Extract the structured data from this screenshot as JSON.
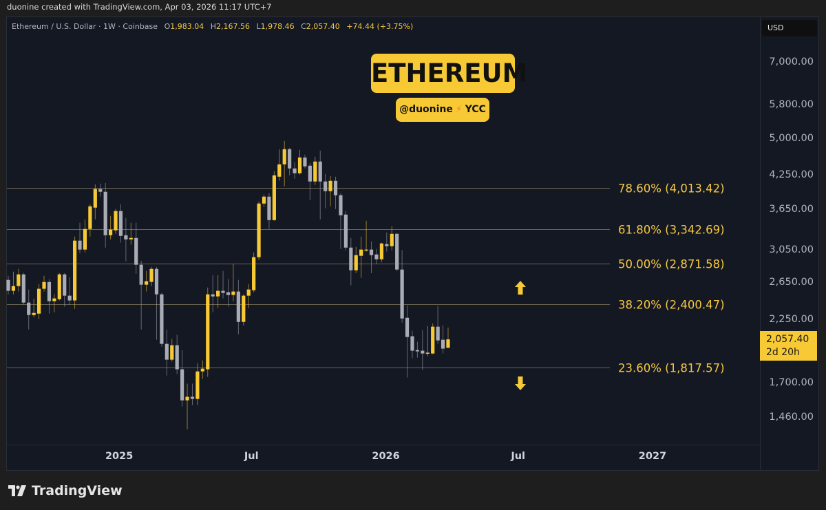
{
  "attribution": "duonine created with TradingView.com, Apr 03, 2026 11:17 UTC+7",
  "legend": {
    "symbol": "Ethereum / U.S. Dollar · 1W · Coinbase",
    "o_label": "O",
    "o": "1,983.04",
    "h_label": "H",
    "h": "2,167.56",
    "l_label": "L",
    "l": "1,978.46",
    "c_label": "C",
    "c": "2,057.40",
    "change": "+74.44 (+3.75%)"
  },
  "title_badge": "ETHEREUM",
  "sub_badge": {
    "handle": "@duonine",
    "icon": "lightning-icon",
    "bolt": "⚡",
    "tag": "YCC"
  },
  "currency": "USD",
  "last_price": {
    "price": "2,057.40",
    "countdown": "2d 20h"
  },
  "colors": {
    "up": "#f7c935",
    "down": "#a9abb5",
    "fib_line": "#6b6550",
    "fib_text": "#f5c842",
    "background": "#141823"
  },
  "arrows": [
    {
      "icon": "arrow-up-icon"
    },
    {
      "icon": "arrow-down-icon"
    }
  ],
  "chart_data": {
    "type": "candlestick",
    "symbol": "Ethereum / U.S. Dollar",
    "interval": "1W",
    "y_scale": "log",
    "ylim": [
      1330,
      8000
    ],
    "grid": false,
    "y_ticks": [
      {
        "value": 7000,
        "label": "7,000.00"
      },
      {
        "value": 5800,
        "label": "5,800.00"
      },
      {
        "value": 5000,
        "label": "5,000.00"
      },
      {
        "value": 4250,
        "label": "4,250.00"
      },
      {
        "value": 3650,
        "label": "3,650.00"
      },
      {
        "value": 3050,
        "label": "3,050.00"
      },
      {
        "value": 2650,
        "label": "2,650.00"
      },
      {
        "value": 2250,
        "label": "2,250.00"
      },
      {
        "value": 1700,
        "label": "1,700.00"
      },
      {
        "value": 1460,
        "label": "1,460.00"
      }
    ],
    "x_ticks": [
      {
        "date": "2025-01-01",
        "label": "2025"
      },
      {
        "date": "2025-07-01",
        "label": "Jul"
      },
      {
        "date": "2026-01-01",
        "label": "2026"
      },
      {
        "date": "2026-07-01",
        "label": "Jul"
      },
      {
        "date": "2027-01-01",
        "label": "2027"
      }
    ],
    "fib_levels": [
      {
        "price": 4013.42,
        "label": "78.60% (4,013.42)"
      },
      {
        "price": 3342.69,
        "label": "61.80% (3,342.69)"
      },
      {
        "price": 2871.58,
        "label": "50.00% (2,871.58)"
      },
      {
        "price": 2400.47,
        "label": "38.20% (2,400.47)"
      },
      {
        "price": 1817.57,
        "label": "23.60% (1,817.57)"
      }
    ],
    "candles_fields": [
      "date",
      "open",
      "high",
      "low",
      "close"
    ],
    "candles": [
      [
        "2024-08-05",
        2675,
        2724,
        2510,
        2549
      ],
      [
        "2024-08-12",
        2549,
        2774,
        2510,
        2603
      ],
      [
        "2024-08-19",
        2603,
        2808,
        2541,
        2741
      ],
      [
        "2024-08-26",
        2741,
        2760,
        2400,
        2420
      ],
      [
        "2024-09-02",
        2420,
        2564,
        2149,
        2291
      ],
      [
        "2024-09-09",
        2291,
        2465,
        2270,
        2312
      ],
      [
        "2024-09-16",
        2305,
        2627,
        2250,
        2572
      ],
      [
        "2024-09-23",
        2572,
        2724,
        2541,
        2650
      ],
      [
        "2024-09-30",
        2650,
        2684,
        2305,
        2435
      ],
      [
        "2024-10-07",
        2435,
        2510,
        2319,
        2465
      ],
      [
        "2024-10-14",
        2457,
        2757,
        2443,
        2741
      ],
      [
        "2024-10-21",
        2741,
        2757,
        2377,
        2495
      ],
      [
        "2024-10-28",
        2495,
        2708,
        2399,
        2443
      ],
      [
        "2024-11-04",
        2443,
        3239,
        2354,
        3181
      ],
      [
        "2024-11-11",
        3181,
        3442,
        3011,
        3058
      ],
      [
        "2024-11-18",
        3058,
        3494,
        3020,
        3349
      ],
      [
        "2024-11-25",
        3349,
        3736,
        3239,
        3701
      ],
      [
        "2024-12-02",
        3680,
        4080,
        3494,
        3995
      ],
      [
        "2024-12-09",
        3995,
        4092,
        3863,
        3946
      ],
      [
        "2024-12-16",
        3946,
        4104,
        3085,
        3258
      ],
      [
        "2024-12-23",
        3258,
        3548,
        3199,
        3339
      ],
      [
        "2024-12-30",
        3329,
        3658,
        3278,
        3625
      ],
      [
        "2025-01-06",
        3625,
        3736,
        3152,
        3248
      ],
      [
        "2025-01-13",
        3258,
        3516,
        2903,
        3199
      ],
      [
        "2025-01-20",
        3199,
        3442,
        3124,
        3219
      ],
      [
        "2025-01-27",
        3219,
        3442,
        2749,
        2860
      ],
      [
        "2025-02-03",
        2860,
        2912,
        2149,
        2619
      ],
      [
        "2025-02-10",
        2619,
        2783,
        2541,
        2659
      ],
      [
        "2025-02-17",
        2651,
        2833,
        2603,
        2808
      ],
      [
        "2025-02-24",
        2808,
        2833,
        2054,
        2510
      ],
      [
        "2025-03-03",
        2510,
        2526,
        1993,
        2017
      ],
      [
        "2025-03-10",
        2017,
        2149,
        1754,
        1881
      ],
      [
        "2025-03-17",
        1881,
        2061,
        1864,
        2005
      ],
      [
        "2025-03-24",
        2005,
        2099,
        1765,
        1803
      ],
      [
        "2025-03-31",
        1803,
        1963,
        1530,
        1572
      ],
      [
        "2025-04-07",
        1572,
        1692,
        1384,
        1597
      ],
      [
        "2025-04-14",
        1597,
        1692,
        1540,
        1582
      ],
      [
        "2025-04-21",
        1582,
        1852,
        1540,
        1786
      ],
      [
        "2025-04-28",
        1786,
        1875,
        1728,
        1808
      ],
      [
        "2025-05-05",
        1803,
        2587,
        1744,
        2510
      ],
      [
        "2025-05-12",
        2510,
        2732,
        2319,
        2487
      ],
      [
        "2025-05-19",
        2487,
        2732,
        2361,
        2549
      ],
      [
        "2025-05-26",
        2549,
        2783,
        2465,
        2526
      ],
      [
        "2025-06-02",
        2533,
        2684,
        2377,
        2503
      ],
      [
        "2025-06-09",
        2503,
        2869,
        2435,
        2541
      ],
      [
        "2025-06-16",
        2541,
        2675,
        2105,
        2222
      ],
      [
        "2025-06-23",
        2222,
        2510,
        2189,
        2495
      ],
      [
        "2025-06-30",
        2495,
        2627,
        2361,
        2564
      ],
      [
        "2025-07-07",
        2556,
        3021,
        2533,
        2957
      ],
      [
        "2025-07-14",
        2957,
        3781,
        2921,
        3747
      ],
      [
        "2025-07-21",
        3747,
        3899,
        3691,
        3863
      ],
      [
        "2025-07-28",
        3863,
        3922,
        3349,
        3483
      ],
      [
        "2025-08-04",
        3483,
        4322,
        3473,
        4244
      ],
      [
        "2025-08-11",
        4218,
        4763,
        4142,
        4455
      ],
      [
        "2025-08-18",
        4455,
        4940,
        4043,
        4763
      ],
      [
        "2025-08-25",
        4763,
        4790,
        4244,
        4375
      ],
      [
        "2025-09-01",
        4375,
        4495,
        4180,
        4283
      ],
      [
        "2025-09-08",
        4283,
        4748,
        4257,
        4592
      ],
      [
        "2025-09-15",
        4592,
        4649,
        4375,
        4415
      ],
      [
        "2025-09-22",
        4428,
        4480,
        3804,
        4130
      ],
      [
        "2025-09-29",
        4130,
        4606,
        4068,
        4510
      ],
      [
        "2025-10-06",
        4510,
        4733,
        3494,
        4130
      ],
      [
        "2025-10-13",
        4130,
        4270,
        3669,
        3957
      ],
      [
        "2025-10-20",
        3957,
        4231,
        3701,
        4142
      ],
      [
        "2025-10-27",
        4142,
        4218,
        3658,
        3887
      ],
      [
        "2025-11-03",
        3887,
        3922,
        3066,
        3558
      ],
      [
        "2025-11-10",
        3569,
        3625,
        3047,
        3085
      ],
      [
        "2025-11-17",
        3085,
        3219,
        2611,
        2791
      ],
      [
        "2025-11-24",
        2791,
        3094,
        2757,
        2984
      ],
      [
        "2025-12-01",
        2975,
        3239,
        2700,
        3058
      ],
      [
        "2025-12-08",
        3049,
        3473,
        3030,
        3058
      ],
      [
        "2025-12-15",
        3058,
        3171,
        2757,
        2984
      ],
      [
        "2025-12-22",
        2993,
        3067,
        2869,
        2930
      ],
      [
        "2025-12-29",
        2930,
        3152,
        2895,
        3142
      ],
      [
        "2026-01-05",
        3133,
        3298,
        3030,
        3104
      ],
      [
        "2026-01-12",
        3104,
        3389,
        3049,
        3278
      ],
      [
        "2026-01-19",
        3278,
        3290,
        2783,
        2800
      ],
      [
        "2026-01-26",
        2800,
        3049,
        2215,
        2256
      ],
      [
        "2026-02-02",
        2263,
        2391,
        1739,
        2079
      ],
      [
        "2026-02-09",
        2086,
        2137,
        1892,
        1957
      ],
      [
        "2026-02-16",
        1963,
        2036,
        1898,
        1951
      ],
      [
        "2026-02-23",
        1957,
        2143,
        1798,
        1933
      ],
      [
        "2026-03-02",
        1933,
        2182,
        1910,
        1940
      ],
      [
        "2026-03-09",
        1933,
        2208,
        1928,
        2176
      ],
      [
        "2026-03-16",
        2176,
        2384,
        2017,
        2048
      ],
      [
        "2026-03-23",
        2054,
        2189,
        1933,
        1975
      ],
      [
        "2026-03-30",
        1983.04,
        2167.56,
        1978.46,
        2057.4
      ]
    ]
  },
  "branding": {
    "logo": "TradingView"
  }
}
